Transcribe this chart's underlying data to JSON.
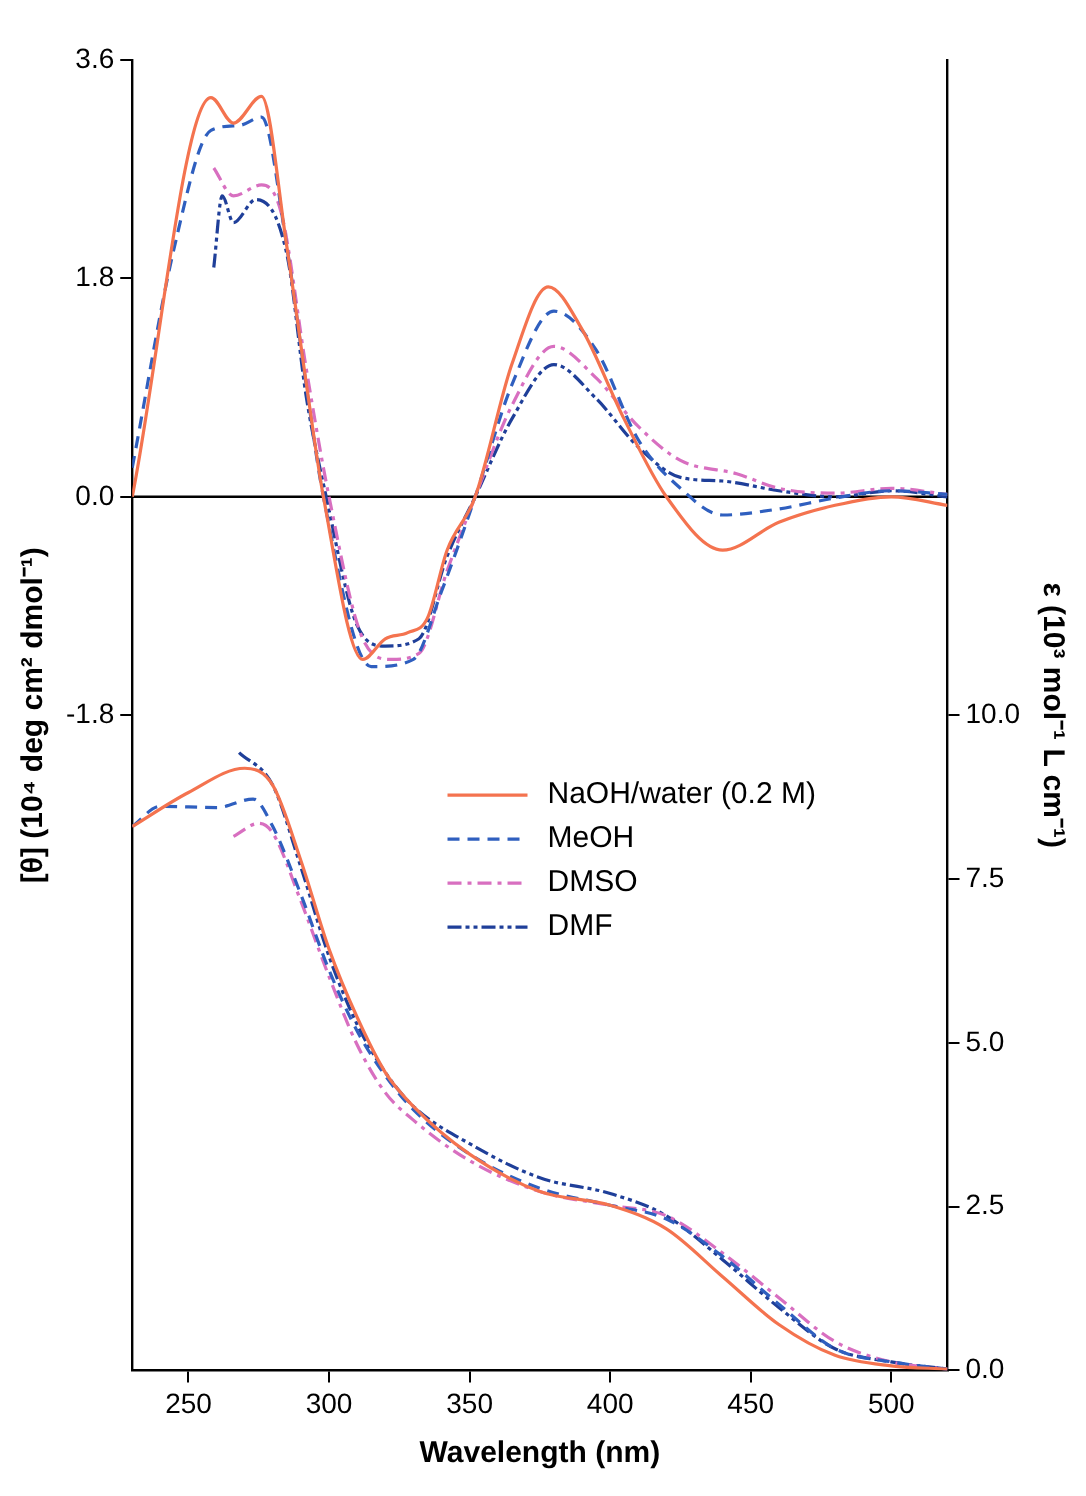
{
  "chart_data": {
    "type": "line",
    "xlabel": "Wavelength (nm)",
    "ylabel": "[θ] (10⁴ deg cm² dmol⁻¹)",
    "y2label": "ε (10³ mol⁻¹ L cm⁻¹)",
    "xlim": [
      230,
      520
    ],
    "xticks": [
      250,
      300,
      350,
      400,
      450,
      500
    ],
    "ylim": [
      -7.2,
      3.6
    ],
    "yticks": [
      -1.8,
      {
        "value": 0,
        "label": "0.0"
      },
      1.8,
      3.6
    ],
    "y2lim": [
      0,
      20
    ],
    "y2ticks": [
      {
        "value": 0,
        "label": "0.0"
      },
      2.5,
      {
        "value": 5,
        "label": "5.0"
      },
      7.5,
      {
        "value": 10,
        "label": "10.0"
      }
    ],
    "grid": false,
    "legend": "right",
    "marker": "none",
    "ref_lines": [
      {
        "axis": "y",
        "value": 0,
        "color": "#000000"
      }
    ],
    "series": [
      {
        "name": "NaOH/water (0.2 M)",
        "color": "#f4734f",
        "line_style": "solid",
        "x": [
          230,
          258,
          266,
          276,
          285,
          292,
          298,
          312,
          320,
          328,
          335,
          342,
          352,
          365,
          378,
          390,
          405,
          420,
          440,
          460,
          480,
          500,
          520
        ],
        "values": [
          0,
          3.29,
          3.08,
          3.3,
          2.06,
          0.92,
          0,
          -1.34,
          -1.17,
          -1.12,
          -1.0,
          -0.44,
          0,
          1.09,
          1.73,
          1.38,
          0.64,
          0,
          -0.44,
          -0.21,
          -0.07,
          0,
          -0.07
        ]
      },
      {
        "name": "MeOH",
        "color": "#2f5fbf",
        "line_style": "dashed",
        "x": [
          230,
          245,
          258,
          268,
          276,
          285,
          292,
          298,
          315,
          330,
          340,
          352,
          365,
          380,
          395,
          410,
          425,
          440,
          460,
          480,
          500,
          520
        ],
        "values": [
          0.24,
          2.06,
          3.02,
          3.06,
          3.13,
          2.06,
          0.9,
          0,
          -1.4,
          -1.34,
          -0.78,
          0,
          0.92,
          1.53,
          1.21,
          0.47,
          0.07,
          -0.15,
          -0.1,
          -0.01,
          0.05,
          0.02
        ]
      },
      {
        "name": "DMSO",
        "color": "#d86fc0",
        "line_style": "dashdot",
        "x": [
          259,
          266,
          276,
          283,
          292,
          300,
          312,
          322,
          332,
          342,
          352,
          365,
          380,
          395,
          410,
          425,
          445,
          460,
          480,
          500,
          520
        ],
        "values": [
          2.71,
          2.48,
          2.57,
          2.34,
          1.04,
          0,
          -1.17,
          -1.34,
          -1.29,
          -0.61,
          0,
          0.75,
          1.24,
          0.98,
          0.58,
          0.3,
          0.19,
          0.07,
          0.03,
          0.07,
          0.02
        ]
      },
      {
        "name": "DMF",
        "color": "#1f3f99",
        "line_style": "dashdotdot",
        "x": [
          259,
          262,
          266,
          274,
          285,
          292,
          299,
          310,
          320,
          332,
          342,
          352,
          365,
          380,
          395,
          410,
          425,
          440,
          460,
          480,
          500,
          520
        ],
        "values": [
          1.89,
          2.48,
          2.26,
          2.45,
          2.0,
          0.81,
          0,
          -1.06,
          -1.23,
          -1.17,
          -0.49,
          0,
          0.64,
          1.09,
          0.81,
          0.41,
          0.16,
          0.13,
          0.05,
          0,
          0.05,
          0
        ]
      },
      {
        "color": "#f4734f",
        "line_style": "solid",
        "axis": "y2",
        "x": [
          230,
          250,
          270,
          280,
          290,
          300,
          310,
          320,
          330,
          350,
          375,
          400,
          420,
          440,
          460,
          480,
          500,
          520
        ],
        "values": [
          8.3,
          8.82,
          9.19,
          8.93,
          7.78,
          6.43,
          5.39,
          4.55,
          4.03,
          3.3,
          2.73,
          2.52,
          2.16,
          1.43,
          0.7,
          0.23,
          0.07,
          0.02
        ]
      },
      {
        "color": "#2f5fbf",
        "line_style": "dashed",
        "axis": "y2",
        "x": [
          230,
          240,
          260,
          273,
          280,
          290,
          300,
          310,
          320,
          330,
          350,
          375,
          400,
          420,
          440,
          460,
          480,
          500,
          520
        ],
        "values": [
          8.3,
          8.61,
          8.59,
          8.72,
          8.3,
          7.26,
          6.11,
          5.18,
          4.5,
          3.98,
          3.3,
          2.78,
          2.52,
          2.31,
          1.74,
          1.01,
          0.33,
          0.13,
          0.02
        ]
      },
      {
        "color": "#d86fc0",
        "line_style": "dashdot",
        "axis": "y2",
        "x": [
          266,
          275,
          280,
          290,
          300,
          310,
          320,
          330,
          350,
          375,
          400,
          420,
          440,
          460,
          480,
          500,
          520
        ],
        "values": [
          8.15,
          8.35,
          8.2,
          7.16,
          6.01,
          4.97,
          4.24,
          3.82,
          3.2,
          2.73,
          2.52,
          2.36,
          1.79,
          1.11,
          0.44,
          0.13,
          0.02
        ]
      },
      {
        "color": "#1f3f99",
        "line_style": "dashdotdot",
        "axis": "y2",
        "x": [
          268,
          280,
          290,
          300,
          310,
          320,
          330,
          350,
          375,
          400,
          420,
          440,
          460,
          480,
          500,
          520
        ],
        "values": [
          9.43,
          8.93,
          7.68,
          6.32,
          5.28,
          4.55,
          4.03,
          3.46,
          2.94,
          2.7,
          2.36,
          1.69,
          0.96,
          0.33,
          0.13,
          0.02
        ]
      }
    ]
  }
}
